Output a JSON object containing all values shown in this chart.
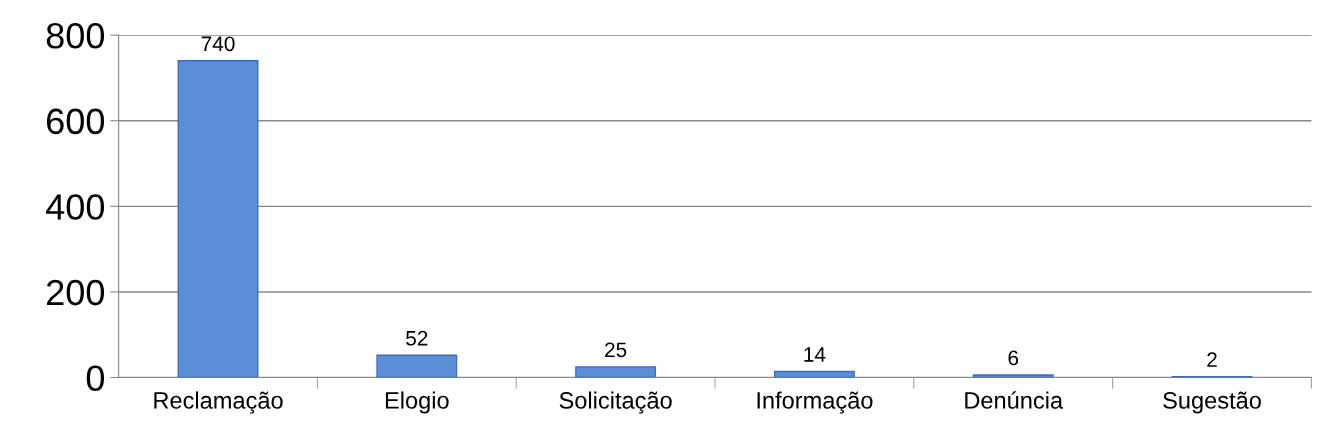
{
  "chart_data": {
    "type": "bar",
    "categories": [
      "Reclamação",
      "Elogio",
      "Solicitação",
      "Informação",
      "Denúncia",
      "Sugestão"
    ],
    "values": [
      740,
      52,
      25,
      14,
      6,
      2
    ],
    "color": "#5a8fd8",
    "ylim": [
      0,
      800
    ],
    "yticks": [
      0,
      200,
      400,
      600,
      800
    ],
    "grid": "y",
    "data_labels": true
  }
}
